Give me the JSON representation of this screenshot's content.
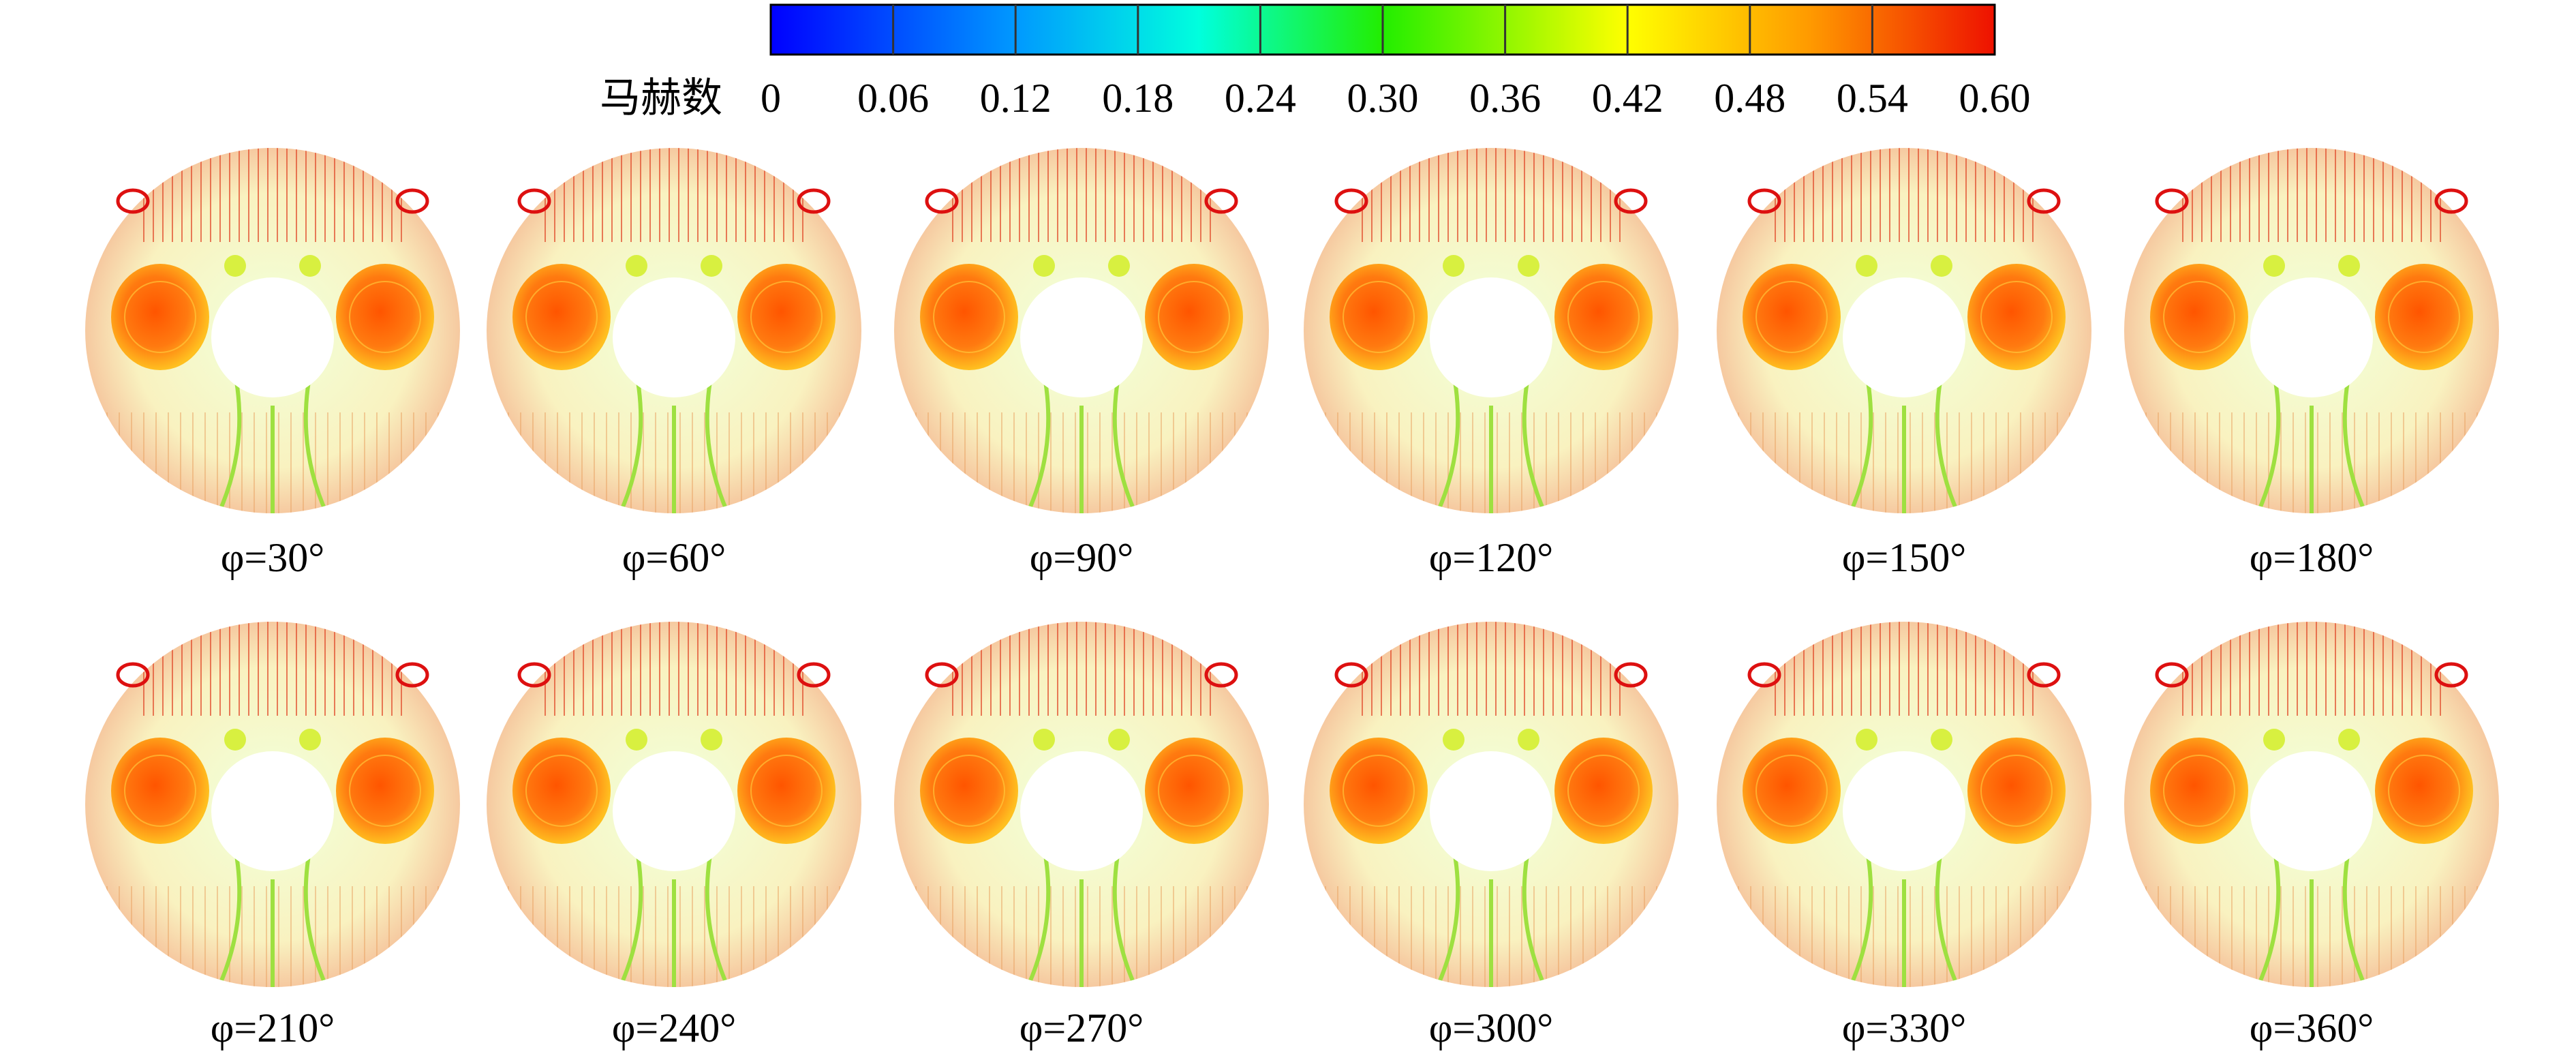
{
  "colorbar": {
    "label": "马赫数",
    "ticks": [
      "0",
      "0.06",
      "0.12",
      "0.18",
      "0.24",
      "0.30",
      "0.36",
      "0.42",
      "0.48",
      "0.54",
      "0.60"
    ]
  },
  "panels": [
    {
      "caption": "φ=30°"
    },
    {
      "caption": "φ=60°"
    },
    {
      "caption": "φ=90°"
    },
    {
      "caption": "φ=120°"
    },
    {
      "caption": "φ=150°"
    },
    {
      "caption": "φ=180°"
    },
    {
      "caption": "φ=210°"
    },
    {
      "caption": "φ=240°"
    },
    {
      "caption": "φ=270°"
    },
    {
      "caption": "φ=300°"
    },
    {
      "caption": "φ=330°"
    },
    {
      "caption": "φ=360°"
    }
  ]
}
